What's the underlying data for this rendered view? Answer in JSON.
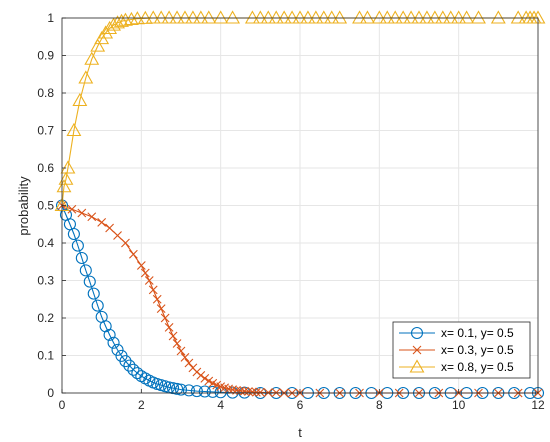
{
  "chart_data": {
    "type": "line",
    "title": "",
    "xlabel": "t",
    "ylabel": "probability",
    "xlim": [
      0,
      12
    ],
    "ylim": [
      0,
      1
    ],
    "xticks": [
      "0",
      "2",
      "4",
      "6",
      "8",
      "10",
      "12"
    ],
    "yticks": [
      "0",
      "0.1",
      "0.2",
      "0.3",
      "0.4",
      "0.5",
      "0.6",
      "0.7",
      "0.8",
      "0.9",
      "1"
    ],
    "grid": true,
    "legend_position": "bottom-right",
    "series": [
      {
        "name": "x= 0.1, y= 0.5",
        "color": "#0072BD",
        "marker": "circle",
        "x": [
          0,
          0.1,
          0.2,
          0.3,
          0.4,
          0.5,
          0.6,
          0.7,
          0.8,
          0.9,
          1.0,
          1.1,
          1.2,
          1.3,
          1.4,
          1.5,
          1.6,
          1.7,
          1.8,
          1.9,
          2.0,
          2.1,
          2.2,
          2.3,
          2.4,
          2.5,
          2.6,
          2.7,
          2.8,
          2.9,
          3.0,
          3.2,
          3.4,
          3.6,
          3.8,
          4.0,
          4.3,
          4.6,
          5.0,
          5.4,
          5.8,
          6.2,
          6.6,
          7.0,
          7.4,
          7.8,
          8.2,
          8.6,
          9.0,
          9.4,
          9.8,
          10.2,
          10.6,
          11.0,
          11.4,
          11.8,
          12.0
        ],
        "y": [
          0.5,
          0.475,
          0.45,
          0.424,
          0.393,
          0.36,
          0.327,
          0.297,
          0.265,
          0.233,
          0.203,
          0.178,
          0.155,
          0.134,
          0.115,
          0.099,
          0.085,
          0.073,
          0.062,
          0.053,
          0.045,
          0.039,
          0.033,
          0.028,
          0.024,
          0.021,
          0.018,
          0.015,
          0.013,
          0.011,
          0.009,
          0.007,
          0.005,
          0.004,
          0.003,
          0.002,
          0.001,
          0.001,
          0,
          0,
          0,
          0,
          0,
          0,
          0,
          0,
          0,
          0,
          0,
          0,
          0,
          0,
          0,
          0,
          0,
          0,
          0
        ]
      },
      {
        "name": "x= 0.3, y= 0.5",
        "color": "#D95319",
        "marker": "cross",
        "x": [
          0,
          0.25,
          0.5,
          0.75,
          1.0,
          1.2,
          1.4,
          1.6,
          1.8,
          2.0,
          2.1,
          2.2,
          2.3,
          2.4,
          2.5,
          2.6,
          2.7,
          2.8,
          2.9,
          3.0,
          3.1,
          3.2,
          3.3,
          3.4,
          3.5,
          3.6,
          3.7,
          3.8,
          3.9,
          4.0,
          4.1,
          4.2,
          4.3,
          4.4,
          4.5,
          4.6,
          4.7,
          4.8,
          4.9,
          5.0,
          5.2,
          5.4,
          5.6,
          5.8,
          6.0,
          6.5,
          7.0,
          7.5,
          8.0,
          8.5,
          9.0,
          9.5,
          10.0,
          10.5,
          11.0,
          11.5,
          12.0
        ],
        "y": [
          0.5,
          0.49,
          0.48,
          0.47,
          0.455,
          0.44,
          0.42,
          0.4,
          0.37,
          0.34,
          0.32,
          0.3,
          0.275,
          0.25,
          0.225,
          0.2,
          0.175,
          0.152,
          0.132,
          0.112,
          0.095,
          0.08,
          0.067,
          0.056,
          0.047,
          0.039,
          0.032,
          0.026,
          0.021,
          0.017,
          0.014,
          0.011,
          0.009,
          0.007,
          0.006,
          0.005,
          0.004,
          0.003,
          0.002,
          0.002,
          0.001,
          0.001,
          0,
          0,
          0,
          0,
          0,
          0,
          0,
          0,
          0,
          0,
          0,
          0,
          0,
          0,
          0
        ]
      },
      {
        "name": "x= 0.8, y= 0.5",
        "color": "#EDB120",
        "marker": "triangle",
        "x": [
          0,
          0.05,
          0.1,
          0.15,
          0.3,
          0.45,
          0.6,
          0.75,
          0.9,
          1.0,
          1.1,
          1.2,
          1.3,
          1.4,
          1.5,
          1.6,
          1.75,
          1.9,
          2.1,
          2.3,
          2.5,
          2.7,
          2.9,
          3.1,
          3.3,
          3.5,
          3.7,
          4.0,
          4.3,
          4.8,
          5.0,
          5.2,
          5.4,
          5.6,
          5.8,
          6.0,
          6.2,
          6.4,
          6.6,
          6.8,
          7.0,
          7.5,
          7.7,
          8.0,
          8.2,
          8.4,
          8.6,
          8.8,
          9.0,
          9.2,
          9.4,
          9.6,
          9.8,
          10.0,
          10.2,
          10.5,
          11.0,
          11.5,
          11.7,
          11.8,
          11.9,
          12.0
        ],
        "y": [
          0.5,
          0.55,
          0.57,
          0.6,
          0.7,
          0.78,
          0.84,
          0.89,
          0.925,
          0.945,
          0.96,
          0.972,
          0.981,
          0.987,
          0.991,
          0.994,
          0.996,
          0.998,
          0.999,
          1,
          1,
          1,
          1,
          1,
          1,
          1,
          1,
          1,
          1,
          1,
          1,
          1,
          1,
          1,
          1,
          1,
          1,
          1,
          1,
          1,
          1,
          1,
          1,
          1,
          1,
          1,
          1,
          1,
          1,
          1,
          1,
          1,
          1,
          1,
          1,
          1,
          1,
          1,
          1,
          1,
          1,
          1
        ]
      }
    ]
  }
}
